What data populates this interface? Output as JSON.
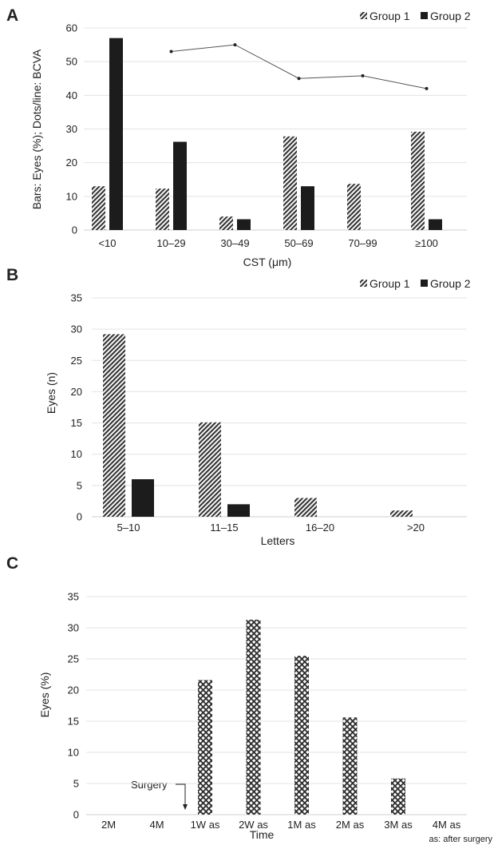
{
  "colors": {
    "dark": "#1c1c1c",
    "line": "#555555",
    "grid": "#e3e3e3"
  },
  "chart_data": [
    {
      "panel": "A",
      "type": "bar",
      "categories": [
        "<10",
        "10–29",
        "30–49",
        "50–69",
        "70–99",
        "≥100"
      ],
      "series": [
        {
          "name": "Group 1",
          "pattern": "diagonal-hatch",
          "values": [
            13,
            12.3,
            4,
            27.8,
            13.7,
            29.2
          ]
        },
        {
          "name": "Group 2",
          "pattern": "solid",
          "values": [
            57,
            26.2,
            3.2,
            13,
            0,
            3.2
          ]
        }
      ],
      "line": {
        "name": "",
        "values": [
          null,
          53,
          55,
          45,
          45.8,
          42
        ]
      },
      "xlabel": "CST (μm)",
      "ylabel": "Bars: Eyes (%); Dots/line: BCVA",
      "ylim": [
        0,
        60
      ],
      "yticks": [
        0,
        10,
        20,
        30,
        40,
        50,
        60
      ],
      "grid": true,
      "legend": "top-right"
    },
    {
      "panel": "B",
      "type": "bar",
      "categories": [
        "5–10",
        "11–15",
        "16–20",
        ">20"
      ],
      "series": [
        {
          "name": "Group 1",
          "pattern": "diagonal-hatch",
          "values": [
            29.2,
            15.1,
            3,
            1
          ]
        },
        {
          "name": "Group 2",
          "pattern": "solid",
          "values": [
            6,
            2,
            0,
            0
          ]
        }
      ],
      "xlabel": "Letters",
      "ylabel": "Eyes (n)",
      "ylim": [
        0,
        35
      ],
      "yticks": [
        0,
        5,
        10,
        15,
        20,
        25,
        30,
        35
      ],
      "grid": true,
      "legend": "top-right"
    },
    {
      "panel": "C",
      "type": "bar",
      "categories": [
        "2M",
        "4M",
        "1W as",
        "2W as",
        "1M as",
        "2M as",
        "3M as",
        "4M as"
      ],
      "series": [
        {
          "name": "",
          "pattern": "crosshatch",
          "values": [
            0,
            0,
            21.6,
            31.3,
            25.5,
            15.6,
            5.8,
            0
          ]
        }
      ],
      "annotation": {
        "text": "Surgery",
        "at_category_index": 2
      },
      "note": "as: after surgery",
      "xlabel": "Time",
      "ylabel": "Eyes (%)",
      "ylim": [
        0,
        35
      ],
      "yticks": [
        0,
        5,
        10,
        15,
        20,
        25,
        30,
        35
      ],
      "grid": true,
      "legend": "none"
    }
  ]
}
